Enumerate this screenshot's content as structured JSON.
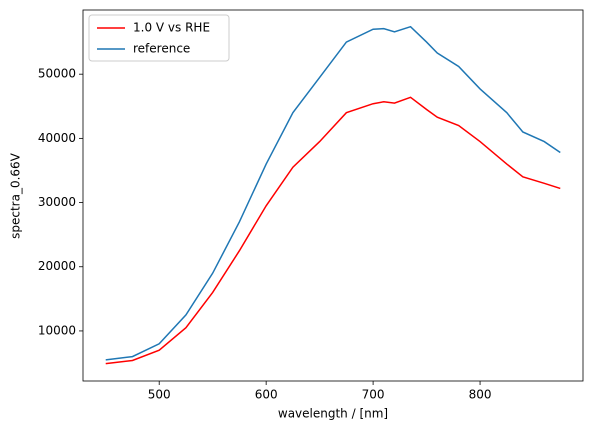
{
  "chart_data": {
    "type": "line",
    "x": [
      450,
      475,
      500,
      525,
      550,
      575,
      600,
      625,
      650,
      675,
      700,
      710,
      720,
      735,
      750,
      760,
      780,
      800,
      825,
      840,
      860,
      875
    ],
    "series": [
      {
        "name": "1.0 V vs RHE",
        "color": "#ff0000",
        "values": [
          4900,
          5400,
          7000,
          10500,
          16000,
          22500,
          29500,
          35500,
          39500,
          44000,
          45400,
          45700,
          45500,
          46400,
          44500,
          43300,
          42000,
          39500,
          36000,
          34000,
          33000,
          32200
        ]
      },
      {
        "name": "reference",
        "color": "#1f77b4",
        "values": [
          5500,
          6000,
          8000,
          12500,
          19000,
          27000,
          36000,
          44000,
          49500,
          55000,
          57000,
          57100,
          56600,
          57400,
          55000,
          53300,
          51200,
          47700,
          44000,
          41000,
          39500,
          37800
        ]
      }
    ],
    "xlabel": "wavelength / [nm]",
    "ylabel": "spectra_0.66V",
    "xlim": [
      428.75,
      896.25
    ],
    "ylim": [
      2200,
      60000
    ],
    "xticks": [
      500,
      600,
      700,
      800
    ],
    "yticks": [
      10000,
      20000,
      30000,
      40000,
      50000
    ],
    "legend": "upper left"
  }
}
